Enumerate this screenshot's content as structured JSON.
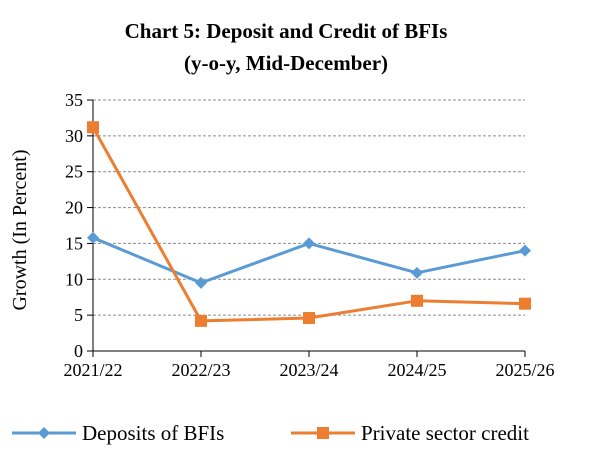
{
  "chart_data": {
    "type": "line",
    "title": "Chart 5:  Deposit and Credit of BFIs",
    "subtitle": "(y-o-y, Mid-December)",
    "ylabel": "Growth (In Percent)",
    "xlabel": "",
    "categories": [
      "2021/22",
      "2022/23",
      "2023/24",
      "2024/25",
      "2025/26"
    ],
    "ylim": [
      0,
      35
    ],
    "yticks": [
      0,
      5,
      10,
      15,
      20,
      25,
      30,
      35
    ],
    "grid": true,
    "legend_position": "bottom",
    "series": [
      {
        "name": "Deposits of BFIs",
        "color": "#5b9bd5",
        "marker": "diamond",
        "values": [
          15.8,
          9.5,
          15.0,
          10.9,
          14.0
        ]
      },
      {
        "name": "Private sector credit",
        "color": "#ed7d31",
        "marker": "square",
        "values": [
          31.2,
          4.2,
          4.6,
          7.0,
          6.6
        ]
      }
    ]
  }
}
